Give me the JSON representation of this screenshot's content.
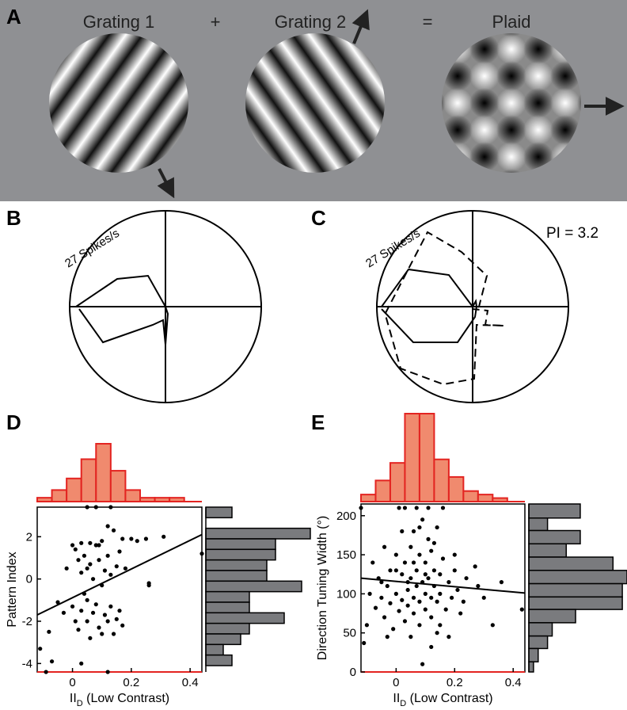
{
  "panels": {
    "A": {
      "label": "A",
      "grating1": "Grating 1",
      "plus": "+",
      "grating2": "Grating 2",
      "equals": "=",
      "plaid": "Plaid"
    },
    "B": {
      "label": "B",
      "scale": "27 Spikes/s"
    },
    "C": {
      "label": "C",
      "scale": "27 Spikes/s",
      "pi": "PI = 3.2"
    },
    "D": {
      "label": "D"
    },
    "E": {
      "label": "E"
    }
  },
  "colors": {
    "background_gray": "#8f9093",
    "hist_fill_red": "#f08a6e",
    "hist_edge_red": "#e32421",
    "hist_fill_gray": "#7a7b7e",
    "axis_red": "#e32421"
  },
  "chart_data": [
    {
      "panel": "D",
      "type": "scatter",
      "xlabel_main": "II",
      "xlabel_sub": "D",
      "xlabel_rest": " (Low Contrast)",
      "ylabel": "Pattern Index",
      "xlim": [
        -0.12,
        0.44
      ],
      "ylim": [
        -4.4,
        3.4
      ],
      "xticks": [
        "0",
        "0.2",
        "0.4"
      ],
      "xtick_values": [
        0,
        0.2,
        0.4
      ],
      "yticks": [
        "2",
        "0",
        "-2",
        "-4"
      ],
      "ytick_values": [
        2,
        0,
        -2,
        -4
      ],
      "fit_line": {
        "x": [
          -0.12,
          0.44
        ],
        "y": [
          -1.7,
          2.1
        ]
      },
      "points": [
        [
          -0.11,
          -3.3
        ],
        [
          -0.08,
          -2.5
        ],
        [
          -0.07,
          -3.9
        ],
        [
          -0.05,
          -1.1
        ],
        [
          -0.03,
          -1.6
        ],
        [
          -0.02,
          0.5
        ],
        [
          0.0,
          -1.3
        ],
        [
          0.0,
          1.6
        ],
        [
          0.01,
          1.4
        ],
        [
          0.01,
          -2.0
        ],
        [
          0.02,
          0.9
        ],
        [
          0.02,
          -2.4
        ],
        [
          0.03,
          1.7
        ],
        [
          0.03,
          0.3
        ],
        [
          0.03,
          -1.5
        ],
        [
          0.04,
          1.1
        ],
        [
          0.04,
          -0.7
        ],
        [
          0.05,
          0.5
        ],
        [
          0.05,
          -2.0
        ],
        [
          0.05,
          3.4
        ],
        [
          0.06,
          1.7
        ],
        [
          0.06,
          -2.8
        ],
        [
          0.06,
          0.7
        ],
        [
          0.07,
          -1.6
        ],
        [
          0.07,
          0.0
        ],
        [
          0.08,
          1.6
        ],
        [
          0.08,
          -1.2
        ],
        [
          0.08,
          3.4
        ],
        [
          0.09,
          0.9
        ],
        [
          0.09,
          -2.3
        ],
        [
          0.1,
          1.8
        ],
        [
          0.1,
          -0.3
        ],
        [
          0.1,
          -2.6
        ],
        [
          0.11,
          0.4
        ],
        [
          0.11,
          -1.7
        ],
        [
          0.12,
          2.5
        ],
        [
          0.12,
          1.1
        ],
        [
          0.12,
          -2.0
        ],
        [
          0.13,
          0.2
        ],
        [
          0.13,
          -1.3
        ],
        [
          0.13,
          3.4
        ],
        [
          0.14,
          2.3
        ],
        [
          0.14,
          -2.6
        ],
        [
          0.15,
          0.6
        ],
        [
          0.15,
          -1.9
        ],
        [
          0.16,
          1.3
        ],
        [
          0.16,
          -1.5
        ],
        [
          0.17,
          -2.2
        ],
        [
          0.17,
          1.9
        ],
        [
          0.18,
          0.5
        ],
        [
          0.2,
          1.9
        ],
        [
          0.22,
          1.8
        ],
        [
          0.25,
          1.9
        ],
        [
          0.26,
          -0.2
        ],
        [
          0.26,
          -0.3
        ],
        [
          0.31,
          2.0
        ],
        [
          0.44,
          1.2
        ],
        [
          0.03,
          -4.0
        ],
        [
          -0.09,
          -4.4
        ],
        [
          0.12,
          -4.4
        ],
        [
          0.05,
          -1.0
        ],
        [
          0.09,
          1.6
        ]
      ],
      "top_hist": {
        "bin_edges": [
          -0.12,
          -0.085,
          -0.05,
          -0.015,
          0.02,
          0.055,
          0.09,
          0.125,
          0.16,
          0.195,
          0.23,
          0.265,
          0.3,
          0.335,
          0.37,
          0.405,
          0.44
        ],
        "counts": [
          1,
          2,
          5,
          10,
          17,
          6,
          3,
          1,
          1,
          1,
          0,
          0,
          0,
          0,
          0,
          0
        ],
        "bins_x": [
          -0.12,
          -0.07,
          -0.02,
          0.03,
          0.08,
          0.13,
          0.18,
          0.23,
          0.28,
          0.33,
          0.38
        ],
        "bin_counts": [
          1,
          3,
          6,
          11,
          15,
          8,
          3,
          1,
          1,
          1
        ]
      },
      "right_hist": {
        "bin_edges": [
          3.4,
          2.9,
          2.4,
          1.9,
          1.4,
          0.9,
          0.4,
          -0.1,
          -0.6,
          -1.1,
          -1.6,
          -2.1,
          -2.6,
          -3.1,
          -3.6,
          -4.1,
          -4.4
        ],
        "counts": [
          3,
          0,
          12,
          8,
          8,
          7,
          7,
          11,
          5,
          5,
          9,
          5,
          4,
          2,
          3,
          0
        ]
      }
    },
    {
      "panel": "E",
      "type": "scatter",
      "xlabel_main": "II",
      "xlabel_sub": "D",
      "xlabel_rest": " (Low Contrast)",
      "ylabel": "Direction Tuning Width (°)",
      "xlim": [
        -0.12,
        0.44
      ],
      "ylim": [
        0,
        215
      ],
      "xticks": [
        "0",
        "0.2",
        "0.4"
      ],
      "xtick_values": [
        0,
        0.2,
        0.4
      ],
      "yticks": [
        "200",
        "150",
        "100",
        "50",
        "0"
      ],
      "ytick_values": [
        200,
        150,
        100,
        50,
        0
      ],
      "fit_line": {
        "x": [
          -0.12,
          0.44
        ],
        "y": [
          120,
          101
        ]
      },
      "points": [
        [
          -0.12,
          210
        ],
        [
          -0.11,
          37
        ],
        [
          -0.1,
          60
        ],
        [
          -0.09,
          100
        ],
        [
          -0.08,
          140
        ],
        [
          -0.07,
          82
        ],
        [
          -0.06,
          120
        ],
        [
          -0.05,
          95
        ],
        [
          -0.04,
          160
        ],
        [
          -0.04,
          70
        ],
        [
          -0.03,
          110
        ],
        [
          -0.02,
          130
        ],
        [
          -0.02,
          88
        ],
        [
          -0.01,
          55
        ],
        [
          0.0,
          150
        ],
        [
          0.0,
          100
        ],
        [
          0.01,
          78
        ],
        [
          0.01,
          210
        ],
        [
          0.02,
          125
        ],
        [
          0.02,
          92
        ],
        [
          0.03,
          65
        ],
        [
          0.03,
          140
        ],
        [
          0.03,
          210
        ],
        [
          0.04,
          105
        ],
        [
          0.04,
          85
        ],
        [
          0.05,
          160
        ],
        [
          0.05,
          45
        ],
        [
          0.05,
          120
        ],
        [
          0.06,
          95
        ],
        [
          0.06,
          180
        ],
        [
          0.06,
          75
        ],
        [
          0.07,
          110
        ],
        [
          0.07,
          210
        ],
        [
          0.07,
          130
        ],
        [
          0.08,
          90
        ],
        [
          0.08,
          150
        ],
        [
          0.08,
          60
        ],
        [
          0.09,
          115
        ],
        [
          0.09,
          195
        ],
        [
          0.09,
          10
        ],
        [
          0.1,
          100
        ],
        [
          0.1,
          140
        ],
        [
          0.1,
          80
        ],
        [
          0.11,
          170
        ],
        [
          0.11,
          120
        ],
        [
          0.11,
          210
        ],
        [
          0.12,
          95
        ],
        [
          0.12,
          155
        ],
        [
          0.12,
          70
        ],
        [
          0.13,
          130
        ],
        [
          0.13,
          110
        ],
        [
          0.14,
          185
        ],
        [
          0.14,
          90
        ],
        [
          0.14,
          50
        ],
        [
          0.15,
          125
        ],
        [
          0.15,
          100
        ],
        [
          0.16,
          145
        ],
        [
          0.16,
          210
        ],
        [
          0.17,
          80
        ],
        [
          0.18,
          115
        ],
        [
          0.18,
          45
        ],
        [
          0.19,
          95
        ],
        [
          0.2,
          130
        ],
        [
          0.21,
          105
        ],
        [
          0.22,
          75
        ],
        [
          0.24,
          120
        ],
        [
          0.27,
          135
        ],
        [
          0.28,
          110
        ],
        [
          0.3,
          95
        ],
        [
          0.33,
          60
        ],
        [
          0.36,
          115
        ],
        [
          0.43,
          80
        ],
        [
          0.02,
          180
        ],
        [
          -0.03,
          45
        ],
        [
          0.12,
          32
        ],
        [
          0.15,
          60
        ],
        [
          0.08,
          185
        ],
        [
          0.04,
          115
        ],
        [
          0.1,
          125
        ],
        [
          0.06,
          140
        ],
        [
          0.0,
          130
        ],
        [
          -0.05,
          115
        ],
        [
          0.2,
          150
        ],
        [
          0.23,
          90
        ],
        [
          0.13,
          165
        ]
      ],
      "top_hist": {
        "bins_x": [
          -0.12,
          -0.07,
          -0.02,
          0.03,
          0.08,
          0.13,
          0.18,
          0.23,
          0.28,
          0.33,
          0.38
        ],
        "bin_counts": [
          2,
          6,
          11,
          25,
          25,
          12,
          7,
          3,
          2,
          1
        ]
      },
      "right_hist": {
        "bin_edges": [
          215,
          197,
          181,
          164,
          147,
          130,
          113,
          96,
          80,
          63,
          46,
          30,
          13,
          0
        ],
        "counts": [
          11,
          4,
          11,
          8,
          18,
          21,
          20,
          20,
          10,
          5,
          4,
          2,
          1
        ]
      }
    }
  ]
}
